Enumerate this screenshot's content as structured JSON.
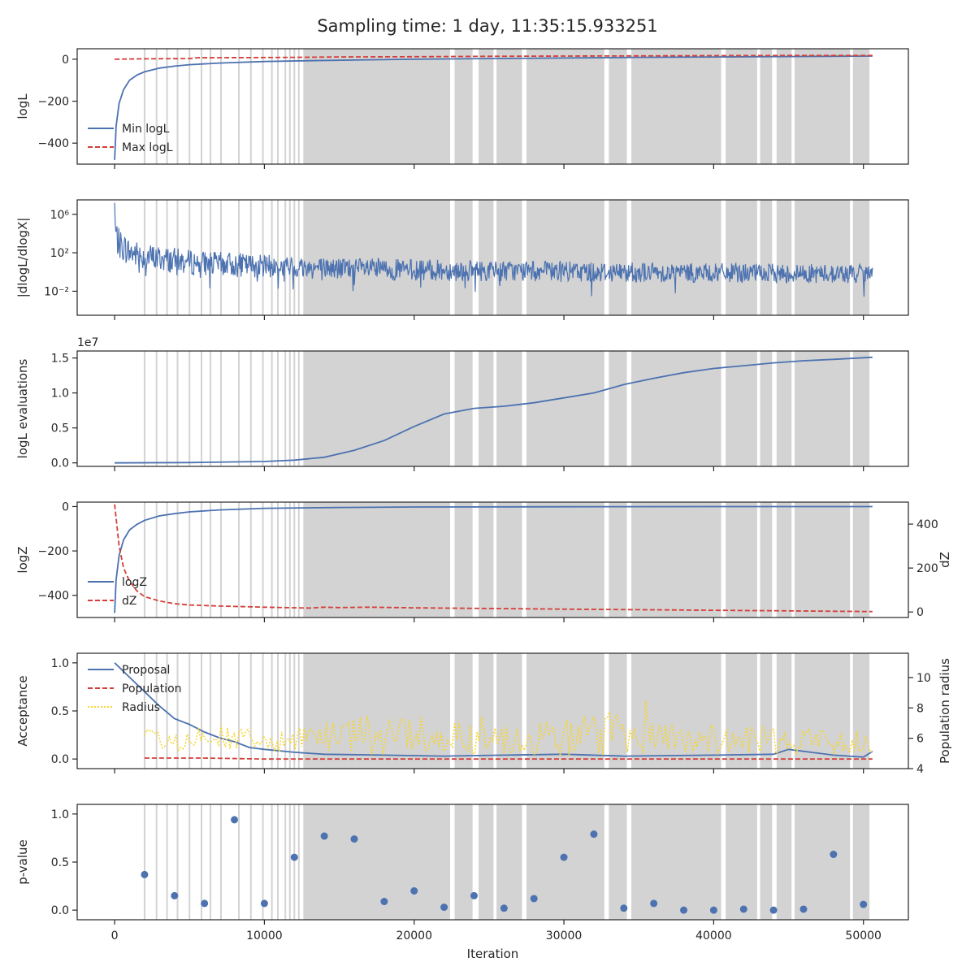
{
  "figure": {
    "title": "Sampling time: 1 day, 11:35:15.933251"
  },
  "colors": {
    "blue": "#4c72b0",
    "red": "#d43f3a",
    "yellow": "#f5d530",
    "band": "#d3d3d3",
    "axis": "#262626"
  },
  "chart_data": [
    {
      "id": "loglike",
      "type": "line",
      "xlim": [
        -2500,
        53000
      ],
      "ylim": [
        -500,
        50
      ],
      "ylabel": "logL",
      "yticks": [
        0,
        -200,
        -400
      ],
      "ytick_labels": [
        "0",
        "−200",
        "−400"
      ],
      "legend": {
        "placement": "lower-left",
        "entries": [
          "Min logL",
          "Max logL"
        ]
      },
      "series": [
        {
          "name": "Min logL",
          "color": "#4c72b0",
          "style": "solid",
          "x": [
            0,
            100,
            300,
            600,
            1000,
            1500,
            2000,
            3000,
            4000,
            5000,
            7000,
            10000,
            13000,
            16000,
            20000,
            25000,
            30000,
            35000,
            40000,
            45000,
            50600
          ],
          "y": [
            -480,
            -320,
            -210,
            -145,
            -100,
            -75,
            -60,
            -42,
            -33,
            -26,
            -18,
            -11,
            -7,
            -4,
            0,
            3,
            6,
            9,
            11,
            13,
            15
          ]
        },
        {
          "name": "Max logL",
          "color": "#d43f3a",
          "style": "dashed",
          "x": [
            0,
            2000,
            5000,
            5500,
            10000,
            12000,
            15000,
            20000,
            25000,
            30000,
            35000,
            40000,
            45000,
            50600
          ],
          "y": [
            0,
            2,
            3,
            7,
            8,
            9,
            11,
            12,
            14,
            15,
            16,
            17,
            18,
            18
          ]
        }
      ]
    },
    {
      "id": "gradients",
      "type": "line",
      "xlim": [
        -2500,
        53000
      ],
      "ylim_log10": [
        -4.5,
        7.5
      ],
      "yscale": "log",
      "ylabel": "|dlogL/dlogX|",
      "yticks_log10": [
        6,
        2,
        -2
      ],
      "ytick_labels": [
        "10⁶",
        "10²",
        "10⁻²"
      ],
      "series": [
        {
          "name": "",
          "color": "#4c72b0",
          "style": "solid",
          "noisy": true,
          "x": [
            0,
            100,
            300,
            1000,
            2000,
            5000,
            10000,
            15000,
            20000,
            30000,
            40000,
            50600
          ],
          "log10_y_upper": [
            7.2,
            5.5,
            4.5,
            3.5,
            3.0,
            2.3,
            1.8,
            1.5,
            1.3,
            1.1,
            0.9,
            0.8
          ],
          "log10_y_lower": [
            3.5,
            2.0,
            1.3,
            0.6,
            0.2,
            -0.3,
            -0.6,
            -0.8,
            -0.9,
            -1.0,
            -1.1,
            -1.2
          ]
        }
      ]
    },
    {
      "id": "likelihood-evals",
      "type": "line",
      "xlim": [
        -2500,
        53000
      ],
      "ylim": [
        -0.05,
        1.6
      ],
      "offset_label": "1e7",
      "ylabel": "logL evaluations",
      "yticks": [
        0.0,
        0.5,
        1.0,
        1.5
      ],
      "ytick_labels": [
        "0.0",
        "0.5",
        "1.0",
        "1.5"
      ],
      "series": [
        {
          "name": "",
          "color": "#4c72b0",
          "style": "solid",
          "x": [
            0,
            5000,
            10000,
            12000,
            14000,
            16000,
            18000,
            20000,
            22000,
            24000,
            26000,
            28000,
            30000,
            32000,
            34000,
            36000,
            38000,
            40000,
            42000,
            44000,
            46000,
            48000,
            50600
          ],
          "y": [
            0.0,
            0.005,
            0.02,
            0.04,
            0.08,
            0.18,
            0.32,
            0.52,
            0.7,
            0.78,
            0.81,
            0.86,
            0.93,
            1.0,
            1.12,
            1.21,
            1.29,
            1.35,
            1.39,
            1.43,
            1.46,
            1.48,
            1.51
          ]
        }
      ]
    },
    {
      "id": "evidence",
      "type": "line",
      "xlim": [
        -2500,
        53000
      ],
      "ylim": [
        -500,
        20
      ],
      "ylabel": "logZ",
      "yticks": [
        0,
        -200,
        -400
      ],
      "ytick_labels": [
        "0",
        "−200",
        "−400"
      ],
      "ylabel_right": "dZ",
      "ylim_right": [
        -25,
        500
      ],
      "yticks_right": [
        0,
        200,
        400
      ],
      "ytick_labels_right": [
        "0",
        "200",
        "400"
      ],
      "legend": {
        "placement": "lower-left",
        "entries": [
          "logZ",
          "dZ"
        ]
      },
      "series": [
        {
          "name": "logZ",
          "axis": "left",
          "color": "#4c72b0",
          "style": "solid",
          "x": [
            0,
            100,
            300,
            600,
            1000,
            1500,
            2000,
            3000,
            4000,
            5000,
            7000,
            10000,
            15000,
            20000,
            30000,
            40000,
            50600
          ],
          "y": [
            -480,
            -330,
            -220,
            -150,
            -105,
            -80,
            -62,
            -42,
            -32,
            -24,
            -15,
            -8,
            -4,
            -2,
            -1,
            0,
            0
          ]
        },
        {
          "name": "dZ",
          "axis": "right",
          "color": "#d43f3a",
          "style": "dashed",
          "x": [
            0,
            300,
            600,
            1000,
            1500,
            2000,
            3000,
            4000,
            5000,
            7000,
            10000,
            13000,
            14000,
            15000,
            17000,
            20000,
            25000,
            30000,
            40000,
            50600
          ],
          "y": [
            490,
            300,
            200,
            140,
            95,
            70,
            50,
            38,
            32,
            27,
            22,
            18,
            22,
            20,
            22,
            19,
            16,
            13,
            8,
            2
          ]
        }
      ]
    },
    {
      "id": "acceptance",
      "type": "line",
      "xlim": [
        -2500,
        53000
      ],
      "ylim": [
        -0.1,
        1.1
      ],
      "ylabel": "Acceptance",
      "yticks": [
        0.0,
        0.5,
        1.0
      ],
      "ytick_labels": [
        "0.0",
        "0.5",
        "1.0"
      ],
      "ylabel_right": "Population radius",
      "ylim_right": [
        4,
        11.6
      ],
      "yticks_right": [
        4,
        6,
        8,
        10
      ],
      "ytick_labels_right": [
        "4",
        "6",
        "8",
        "10"
      ],
      "legend": {
        "placement": "upper-left",
        "entries": [
          "Proposal",
          "Population",
          "Radius"
        ]
      },
      "series": [
        {
          "name": "Proposal",
          "axis": "left",
          "color": "#4c72b0",
          "style": "solid",
          "x": [
            0,
            1000,
            2000,
            3000,
            4000,
            5000,
            6000,
            7000,
            8000,
            9000,
            10000,
            12000,
            14000,
            18000,
            22000,
            26000,
            30000,
            34000,
            40000,
            44000,
            45000,
            48000,
            50000,
            50600
          ],
          "y": [
            1.0,
            0.85,
            0.7,
            0.55,
            0.42,
            0.36,
            0.28,
            0.22,
            0.18,
            0.12,
            0.1,
            0.07,
            0.05,
            0.04,
            0.03,
            0.04,
            0.05,
            0.03,
            0.04,
            0.05,
            0.1,
            0.04,
            0.02,
            0.08
          ]
        },
        {
          "name": "Population",
          "axis": "left",
          "color": "#d43f3a",
          "style": "dashed",
          "x": [
            2000,
            4000,
            6000,
            10000,
            20000,
            30000,
            40000,
            50600
          ],
          "y": [
            0.01,
            0.01,
            0.01,
            0.0,
            0.0,
            0.0,
            0.0,
            0.0
          ]
        },
        {
          "name": "Radius",
          "axis": "right",
          "color": "#f5d530",
          "style": "dotted",
          "noisy": true,
          "x": [
            2000,
            4000,
            6000,
            8000,
            10000,
            12000,
            16000,
            20000,
            25000,
            30000,
            32500,
            35000,
            40000,
            45000,
            50600
          ],
          "y_center": [
            6.0,
            5.8,
            6.2,
            6.0,
            5.7,
            5.8,
            6.2,
            6.3,
            6.2,
            6.0,
            6.4,
            6.1,
            5.9,
            5.8,
            5.8
          ],
          "y_spread": [
            0.6,
            0.7,
            0.8,
            0.9,
            0.6,
            0.8,
            1.3,
            1.4,
            1.3,
            1.2,
            1.6,
            1.1,
            1.0,
            0.9,
            0.8
          ]
        }
      ]
    },
    {
      "id": "pvalue",
      "type": "scatter",
      "xlim": [
        -2500,
        53000
      ],
      "ylim": [
        -0.1,
        1.1
      ],
      "ylabel": "p-value",
      "xlabel": "Iteration",
      "yticks": [
        0.0,
        0.5,
        1.0
      ],
      "ytick_labels": [
        "0.0",
        "0.5",
        "1.0"
      ],
      "xticks": [
        0,
        10000,
        20000,
        30000,
        40000,
        50000
      ],
      "xtick_labels": [
        "0",
        "10000",
        "20000",
        "30000",
        "40000",
        "50000"
      ],
      "series": [
        {
          "name": "",
          "color": "#4c72b0",
          "x": [
            2000,
            4000,
            6000,
            8000,
            10000,
            12000,
            14000,
            16000,
            18000,
            20000,
            22000,
            24000,
            26000,
            28000,
            30000,
            32000,
            34000,
            36000,
            38000,
            40000,
            42000,
            44000,
            46000,
            48000,
            50000
          ],
          "y": [
            0.37,
            0.15,
            0.07,
            0.94,
            0.07,
            0.55,
            0.77,
            0.74,
            0.09,
            0.2,
            0.03,
            0.15,
            0.02,
            0.12,
            0.55,
            0.79,
            0.02,
            0.07,
            0.0,
            0.0,
            0.01,
            0.0,
            0.01,
            0.58,
            0.06
          ]
        }
      ]
    }
  ],
  "insertion_bands": {
    "lines": [
      2000,
      2800,
      3500,
      4200,
      5000,
      5800,
      6400,
      7100,
      8300,
      9100,
      9900,
      10500,
      10900,
      11400,
      11700,
      12000,
      12300
    ],
    "spans": [
      [
        12600,
        22400
      ],
      [
        22700,
        23900
      ],
      [
        24300,
        25300
      ],
      [
        25500,
        27200
      ],
      [
        27500,
        32700
      ],
      [
        33000,
        34200
      ],
      [
        34500,
        40500
      ],
      [
        40800,
        42900
      ],
      [
        43100,
        43900
      ],
      [
        44200,
        45200
      ],
      [
        45400,
        49100
      ],
      [
        49300,
        50400
      ]
    ]
  }
}
